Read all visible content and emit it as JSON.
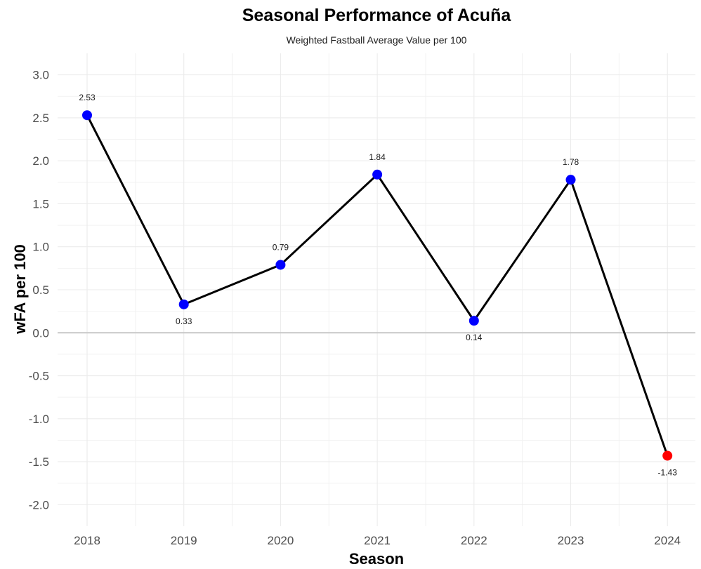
{
  "chart_data": {
    "type": "line",
    "title": "Seasonal Performance of Acuña",
    "subtitle": "Weighted Fastball Average Value per 100",
    "xlabel": "Season",
    "ylabel": "wFA per 100",
    "categories": [
      "2018",
      "2019",
      "2020",
      "2021",
      "2022",
      "2023",
      "2024"
    ],
    "series": [
      {
        "name": "wFA per 100",
        "values": [
          2.53,
          0.33,
          0.79,
          1.84,
          0.14,
          1.78,
          -1.43
        ],
        "labels": [
          "2.53",
          "0.33",
          "0.79",
          "1.84",
          "0.14",
          "1.78",
          "-1.43"
        ]
      }
    ],
    "point_colors": [
      "#0000ff",
      "#0000ff",
      "#0000ff",
      "#0000ff",
      "#0000ff",
      "#0000ff",
      "#ff0000"
    ],
    "line_color": "#000000",
    "ylim": [
      -2.25,
      3.25
    ],
    "yticks": [
      -2.0,
      -1.5,
      -1.0,
      -0.5,
      0.0,
      0.5,
      1.0,
      1.5,
      2.0,
      2.5,
      3.0
    ],
    "ytick_labels": [
      "-2.0",
      "-1.5",
      "-1.0",
      "-0.5",
      "0.0",
      "0.5",
      "1.0",
      "1.5",
      "2.0",
      "2.5",
      "3.0"
    ],
    "reference_line": 0,
    "grid": true,
    "legend": "none"
  }
}
